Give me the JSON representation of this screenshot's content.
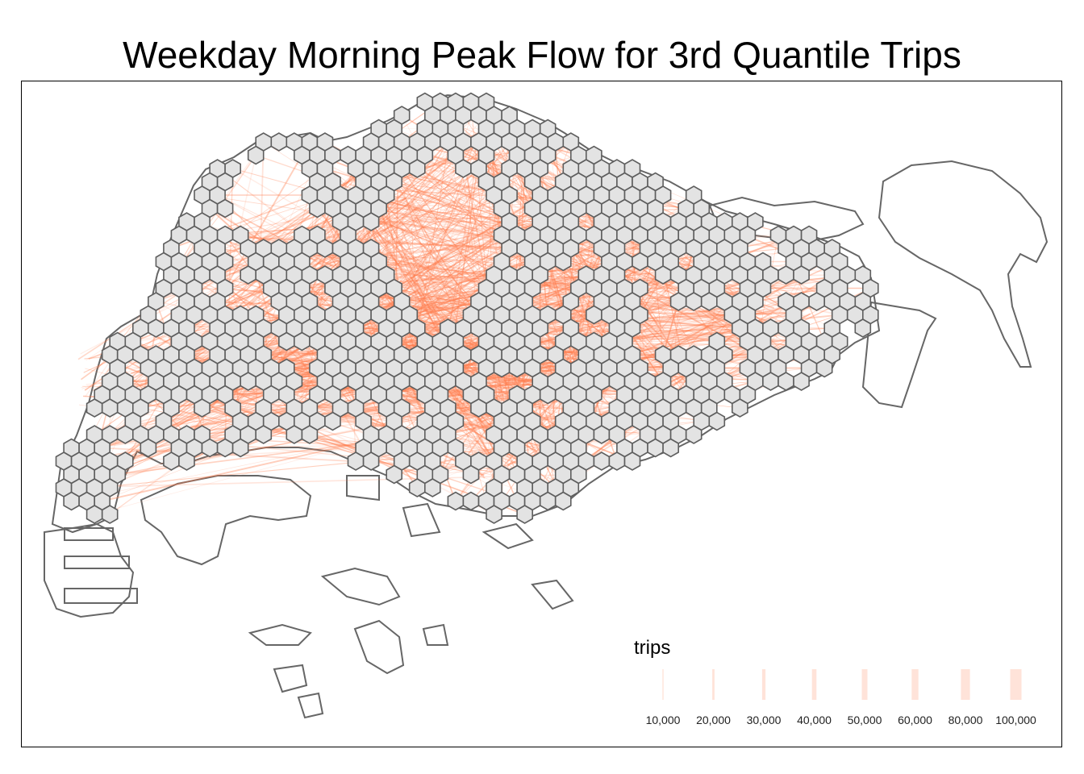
{
  "title": "Weekday Morning Peak Flow for 3rd Quantile Trips",
  "colors": {
    "flow_line": "#ff7f50",
    "hexagon_fill": "#e3e3e3",
    "hexagon_stroke": "#5e5e5e",
    "coastline": "#666666",
    "frame": "#000000"
  },
  "legend": {
    "title": "trips",
    "items": [
      {
        "label": "10,000",
        "value": 10000
      },
      {
        "label": "20,000",
        "value": 20000
      },
      {
        "label": "30,000",
        "value": 30000
      },
      {
        "label": "40,000",
        "value": 40000
      },
      {
        "label": "50,000",
        "value": 50000
      },
      {
        "label": "60,000",
        "value": 60000
      },
      {
        "label": "80,000",
        "value": 80000
      },
      {
        "label": "100,000",
        "value": 100000
      }
    ]
  }
}
